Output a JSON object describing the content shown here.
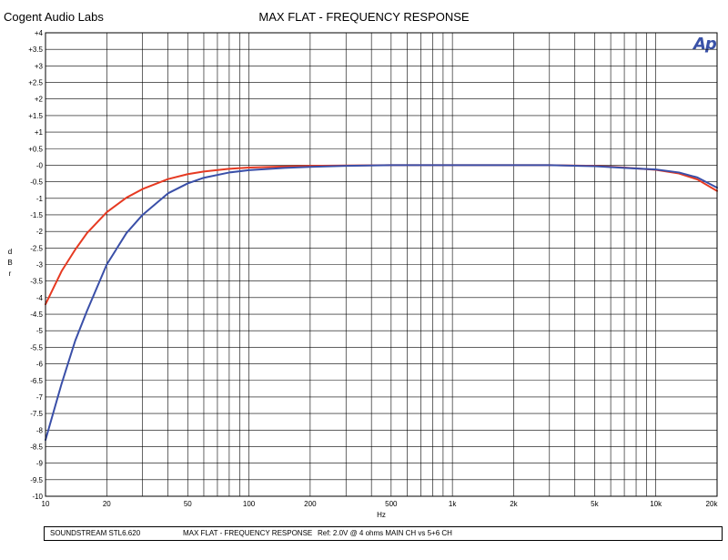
{
  "header": {
    "company": "Cogent Audio Labs",
    "title": "MAX FLAT  -  FREQUENCY RESPONSE",
    "logo": "Ap"
  },
  "chart_data": {
    "type": "line",
    "title": "MAX FLAT  -  FREQUENCY RESPONSE",
    "xlabel": "Hz",
    "ylabel": "dBr",
    "xscale": "log",
    "xlim": [
      10,
      20000
    ],
    "ylim": [
      -10,
      4
    ],
    "grid": true,
    "x_tick_labels": [
      "10",
      "20",
      "50",
      "100",
      "200",
      "500",
      "1k",
      "2k",
      "5k",
      "10k",
      "20k"
    ],
    "x_tick_values": [
      10,
      20,
      50,
      100,
      200,
      500,
      1000,
      2000,
      5000,
      10000,
      20000
    ],
    "y_tick_labels": [
      "+4",
      "+3.5",
      "+3",
      "+2.5",
      "+2",
      "+1.5",
      "+1",
      "+0.5",
      "-0",
      "-0.5",
      "-1",
      "-1.5",
      "-2",
      "-2.5",
      "-3",
      "-3.5",
      "-4",
      "-4.5",
      "-5",
      "-5.5",
      "-6",
      "-6.5",
      "-7",
      "-7.5",
      "-8",
      "-8.5",
      "-9",
      "-9.5",
      "-10"
    ],
    "y_tick_values": [
      4,
      3.5,
      3,
      2.5,
      2,
      1.5,
      1,
      0.5,
      0,
      -0.5,
      -1,
      -1.5,
      -2,
      -2.5,
      -3,
      -3.5,
      -4,
      -4.5,
      -5,
      -5.5,
      -6,
      -6.5,
      -7,
      -7.5,
      -8,
      -8.5,
      -9,
      -9.5,
      -10
    ],
    "series": [
      {
        "color": "#e63a22",
        "x": [
          10,
          12,
          14,
          16,
          20,
          25,
          30,
          40,
          50,
          60,
          80,
          100,
          150,
          200,
          300,
          500,
          1000,
          2000,
          3000,
          5000,
          7000,
          10000,
          13000,
          16000,
          20000
        ],
        "y": [
          -4.2,
          -3.2,
          -2.55,
          -2.05,
          -1.42,
          -0.98,
          -0.72,
          -0.42,
          -0.27,
          -0.19,
          -0.11,
          -0.07,
          -0.04,
          -0.02,
          -0.01,
          0,
          0,
          0,
          0,
          -0.02,
          -0.07,
          -0.14,
          -0.25,
          -0.43,
          -0.78
        ]
      },
      {
        "color": "#3a4fa8",
        "x": [
          10,
          12,
          14,
          16,
          20,
          25,
          30,
          40,
          50,
          60,
          80,
          100,
          150,
          200,
          300,
          500,
          1000,
          2000,
          3000,
          5000,
          7000,
          10000,
          13000,
          16000,
          20000
        ],
        "y": [
          -8.3,
          -6.6,
          -5.3,
          -4.4,
          -3.0,
          -2.05,
          -1.5,
          -0.85,
          -0.55,
          -0.38,
          -0.22,
          -0.15,
          -0.08,
          -0.05,
          -0.02,
          0,
          0,
          0,
          0,
          -0.03,
          -0.08,
          -0.13,
          -0.22,
          -0.37,
          -0.68
        ]
      }
    ]
  },
  "footer": {
    "product": "SOUNDSTREAM STL6.620",
    "title": "MAX FLAT  -  FREQUENCY RESPONSE",
    "ref": "Ref: 2.0V @ 4 ohms   MAIN CH vs 5+6 CH"
  }
}
